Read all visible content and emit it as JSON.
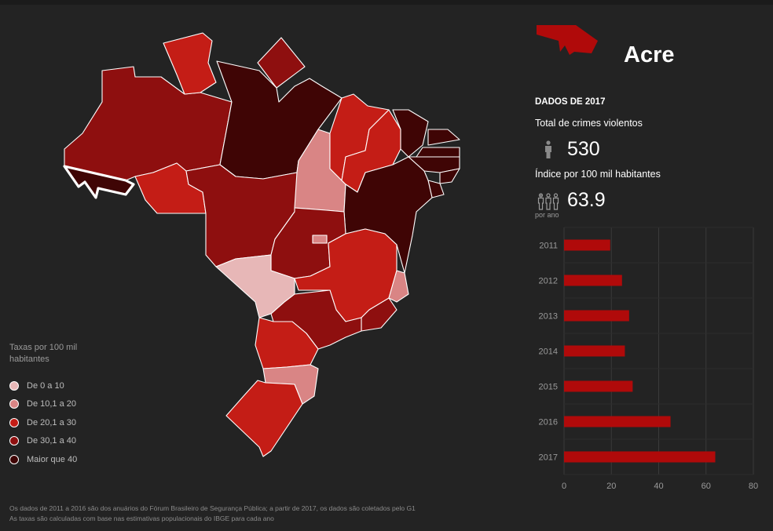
{
  "panel": {
    "state_name": "Acre",
    "year_heading": "DADOS DE 2017",
    "crimes_label": "Total de crimes violentos",
    "crimes_value": "530",
    "index_label": "Índice por 100 mil habitantes",
    "index_value": "63.9",
    "per_year_label": "por ano",
    "icons": [
      "acre-state-icon",
      "person-icon",
      "people-group-icon"
    ]
  },
  "legend": {
    "title": "Taxas por 100 mil habitantes",
    "items": [
      {
        "label": "De 0 a 10",
        "color": "#e7b7b7"
      },
      {
        "label": "De 10,1 a 20",
        "color": "#d98585"
      },
      {
        "label": "De 20,1 a 30",
        "color": "#c41d16"
      },
      {
        "label": "De 30,1 a 40",
        "color": "#8e0f0f"
      },
      {
        "label": "Maior que 40",
        "color": "#3f0505"
      }
    ]
  },
  "map": {
    "selected_state": "Acre",
    "states": [
      {
        "name": "Acre",
        "class": 4,
        "selected": true
      },
      {
        "name": "Amazonas",
        "class": 3
      },
      {
        "name": "Roraima",
        "class": 2
      },
      {
        "name": "Amapá",
        "class": 3
      },
      {
        "name": "Pará",
        "class": 4
      },
      {
        "name": "Rondônia",
        "class": 2
      },
      {
        "name": "Mato Grosso",
        "class": 3
      },
      {
        "name": "Tocantins",
        "class": 1
      },
      {
        "name": "Maranhão",
        "class": 2
      },
      {
        "name": "Piauí",
        "class": 2
      },
      {
        "name": "Ceará",
        "class": 4
      },
      {
        "name": "Rio Grande do Norte",
        "class": 4
      },
      {
        "name": "Paraíba",
        "class": 4
      },
      {
        "name": "Pernambuco",
        "class": 4
      },
      {
        "name": "Alagoas",
        "class": 4
      },
      {
        "name": "Sergipe",
        "class": 4
      },
      {
        "name": "Bahia",
        "class": 4
      },
      {
        "name": "Goiás",
        "class": 3
      },
      {
        "name": "Distrito Federal",
        "class": 1
      },
      {
        "name": "Mato Grosso do Sul",
        "class": 2
      },
      {
        "name": "Minas Gerais",
        "class": 1
      },
      {
        "name": "Espírito Santo",
        "class": 3
      },
      {
        "name": "Rio de Janeiro",
        "class": 3
      },
      {
        "name": "São Paulo",
        "class": 0
      },
      {
        "name": "Paraná",
        "class": 2
      },
      {
        "name": "Santa Catarina",
        "class": 1
      },
      {
        "name": "Rio Grande do Sul",
        "class": 2
      }
    ]
  },
  "chart_data": {
    "type": "bar",
    "orientation": "horizontal",
    "categories": [
      "2011",
      "2012",
      "2013",
      "2014",
      "2015",
      "2016",
      "2017"
    ],
    "values": [
      19.5,
      24.5,
      27.5,
      25.7,
      29,
      45,
      63.9
    ],
    "xlim": [
      0,
      80
    ],
    "xticks": [
      "0",
      "20",
      "40",
      "60",
      "80"
    ],
    "bar_color": "#b00a0a",
    "grid": true
  },
  "footnote": {
    "line1": "Os dados de 2011 a 2016 são dos anuários do Fórum Brasileiro de Segurança Pública; a partir de 2017, os dados são coletados pelo G1",
    "line2": "As taxas são calculadas com base nas estimativas populacionais do IBGE para cada ano"
  }
}
